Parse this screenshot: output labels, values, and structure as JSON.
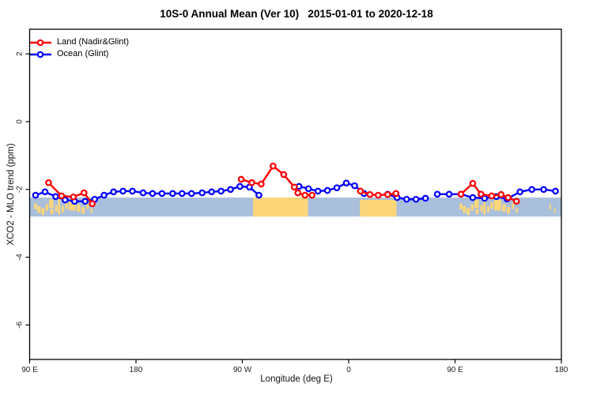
{
  "title": "10S-0 Annual Mean (Ver 10)   2015-01-01 to 2020-12-18",
  "legend": {
    "items": [
      {
        "label": "Land (Nadir&Glint)",
        "color": "#ff0000",
        "marker": "open-circle"
      },
      {
        "label": "Ocean (Glint)",
        "color": "#0000ff",
        "marker": "open-circle"
      }
    ]
  },
  "axes": {
    "x_label": "Longitude (deg E)",
    "y_label": "XCO2 - MLO trend (ppm)",
    "x_ticks": [
      {
        "label": "90 E",
        "axis_lon": 90
      },
      {
        "label": "180",
        "axis_lon": 180
      },
      {
        "label": "90 W",
        "axis_lon": 270
      },
      {
        "label": "0",
        "axis_lon": 360
      },
      {
        "label": "90 E",
        "axis_lon": 450
      },
      {
        "label": "180",
        "axis_lon": 540
      }
    ],
    "y_ticks": [
      {
        "label": "2",
        "value": 2
      },
      {
        "label": "0",
        "value": 0
      },
      {
        "label": "-2",
        "value": -2
      },
      {
        "label": "-4",
        "value": -4
      },
      {
        "label": "-6",
        "value": -6
      }
    ]
  },
  "chart_data": {
    "type": "line",
    "title": "10S-0 Annual Mean (Ver 10)   2015-01-01 to 2020-12-18",
    "xlabel": "Longitude (deg E)",
    "ylabel": "XCO2 - MLO trend (ppm)",
    "x_axis_note": "x is longitude in degrees east, axis runs 90E eastward wrapping past 180 and 0 back to 180 (axis coords 90..540; values>360 wrap by -360)",
    "xlim": [
      90,
      540
    ],
    "ylim": [
      -7,
      2.7
    ],
    "grid": false,
    "legend_position": "top-left-inside",
    "marker_style": "open-circle-white-fill",
    "series": [
      {
        "name": "Land (Nadir&Glint)",
        "color": "#ff0000",
        "segments": [
          [
            [
              106,
              -1.8
            ],
            [
              117,
              -2.19
            ],
            [
              127,
              -2.22
            ],
            [
              136,
              -2.1
            ],
            [
              143,
              -2.42
            ]
          ],
          [
            [
              269,
              -1.7
            ],
            [
              278,
              -1.8
            ],
            [
              286,
              -1.84
            ],
            [
              296,
              -1.31
            ],
            [
              305,
              -1.56
            ],
            [
              314,
              -1.93
            ],
            [
              317,
              -2.1
            ],
            [
              323,
              -2.17
            ],
            [
              329,
              -2.17
            ]
          ],
          [
            [
              370,
              -2.05
            ],
            [
              378,
              -2.15
            ],
            [
              385,
              -2.17
            ],
            [
              393,
              -2.15
            ],
            [
              400,
              -2.12
            ]
          ],
          [
            [
              455,
              -2.14
            ],
            [
              465,
              -1.82
            ],
            [
              472,
              -2.14
            ],
            [
              481,
              -2.19
            ],
            [
              489,
              -2.15
            ],
            [
              495,
              -2.24
            ],
            [
              502,
              -2.35
            ]
          ]
        ]
      },
      {
        "name": "Ocean (Glint)",
        "color": "#0000ff",
        "segments": [
          [
            [
              95,
              -2.17
            ],
            [
              103,
              -2.07
            ],
            [
              112,
              -2.21
            ],
            [
              120,
              -2.31
            ],
            [
              128,
              -2.35
            ],
            [
              137,
              -2.35
            ],
            [
              145,
              -2.29
            ],
            [
              153,
              -2.17
            ],
            [
              161,
              -2.07
            ],
            [
              169,
              -2.05
            ],
            [
              177,
              -2.05
            ],
            [
              186,
              -2.1
            ],
            [
              194,
              -2.12
            ],
            [
              202,
              -2.12
            ],
            [
              211,
              -2.12
            ],
            [
              219,
              -2.12
            ],
            [
              227,
              -2.12
            ],
            [
              236,
              -2.1
            ],
            [
              244,
              -2.07
            ],
            [
              252,
              -2.05
            ],
            [
              260,
              -2.0
            ],
            [
              268,
              -1.91
            ],
            [
              276,
              -1.93
            ],
            [
              284,
              -2.17
            ]
          ],
          [
            [
              318,
              -1.91
            ],
            [
              326,
              -1.98
            ],
            [
              334,
              -2.05
            ],
            [
              342,
              -2.03
            ],
            [
              350,
              -1.95
            ],
            [
              358,
              -1.81
            ],
            [
              365,
              -1.89
            ],
            [
              373,
              -2.12
            ]
          ],
          [
            [
              393,
              -2.14
            ],
            [
              401,
              -2.24
            ],
            [
              409,
              -2.29
            ],
            [
              417,
              -2.29
            ],
            [
              425,
              -2.26
            ]
          ],
          [
            [
              435,
              -2.14
            ],
            [
              445,
              -2.14
            ],
            [
              455,
              -2.14
            ],
            [
              465,
              -2.24
            ],
            [
              475,
              -2.26
            ],
            [
              485,
              -2.21
            ],
            [
              494,
              -2.28
            ],
            [
              505,
              -2.07
            ],
            [
              515,
              -2.0
            ],
            [
              525,
              -2.0
            ],
            [
              535,
              -2.05
            ]
          ]
        ]
      }
    ],
    "map_band": {
      "description": "latitude strip map 10S-0 drawn across plot: ocean blue band with tan land patches",
      "ocean_color": "#a9bfdc",
      "land_color": "#fcd679",
      "band_top_value": -2.24,
      "band_bottom_value": -2.8,
      "land_patches": [
        [
          279.0,
          46.5,
          0.0,
          1.0
        ],
        [
          369.5,
          31.0,
          0.12,
          1.0
        ],
        [
          93.8,
          2.3,
          0.3,
          0.62
        ],
        [
          96.5,
          2.8,
          0.45,
          0.8
        ],
        [
          100.0,
          2.5,
          0.55,
          0.92
        ],
        [
          103.5,
          2.2,
          0.35,
          0.7
        ],
        [
          106.5,
          3.5,
          0.1,
          0.55
        ],
        [
          107.5,
          2.5,
          0.6,
          0.88
        ],
        [
          111.5,
          2.0,
          0.4,
          0.75
        ],
        [
          114.0,
          1.8,
          0.05,
          0.9
        ],
        [
          117.0,
          2.0,
          0.45,
          0.78
        ],
        [
          120.0,
          2.2,
          0.25,
          0.6
        ],
        [
          123.0,
          6.0,
          0.12,
          0.68
        ],
        [
          130.0,
          3.0,
          0.35,
          0.75
        ],
        [
          134.0,
          2.5,
          0.5,
          0.85
        ],
        [
          138.0,
          2.0,
          0.3,
          0.6
        ],
        [
          141.5,
          1.5,
          0.55,
          0.8
        ],
        [
          453.8,
          2.3,
          0.3,
          0.62
        ],
        [
          456.5,
          2.8,
          0.45,
          0.8
        ],
        [
          460.0,
          2.5,
          0.55,
          0.92
        ],
        [
          463.5,
          2.2,
          0.35,
          0.7
        ],
        [
          466.5,
          3.5,
          0.1,
          0.55
        ],
        [
          467.5,
          2.5,
          0.6,
          0.88
        ],
        [
          471.5,
          2.0,
          0.4,
          0.75
        ],
        [
          474.0,
          1.8,
          0.05,
          0.9
        ],
        [
          477.0,
          2.0,
          0.45,
          0.78
        ],
        [
          480.0,
          2.2,
          0.25,
          0.6
        ],
        [
          483.0,
          6.0,
          0.12,
          0.68
        ],
        [
          490.0,
          3.0,
          0.35,
          0.75
        ],
        [
          494.0,
          2.5,
          0.5,
          0.85
        ],
        [
          498.0,
          2.0,
          0.3,
          0.6
        ],
        [
          501.5,
          1.5,
          0.55,
          0.8
        ],
        [
          530.0,
          1.3,
          0.35,
          0.65
        ],
        [
          534.0,
          1.0,
          0.55,
          0.85
        ]
      ]
    }
  }
}
